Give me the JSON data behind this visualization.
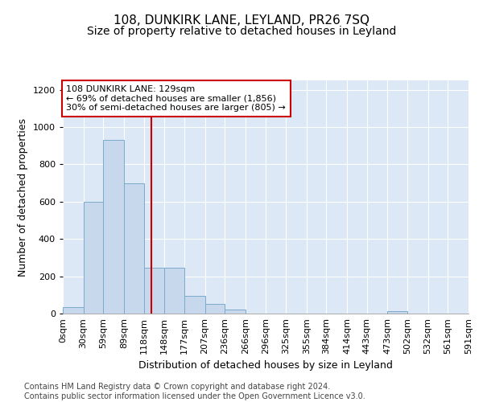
{
  "title1": "108, DUNKIRK LANE, LEYLAND, PR26 7SQ",
  "title2": "Size of property relative to detached houses in Leyland",
  "xlabel": "Distribution of detached houses by size in Leyland",
  "ylabel": "Number of detached properties",
  "bin_edges": [
    0,
    30,
    59,
    89,
    118,
    148,
    177,
    207,
    236,
    266,
    296,
    325,
    355,
    384,
    414,
    443,
    473,
    502,
    532,
    561,
    591
  ],
  "bar_heights": [
    35,
    600,
    930,
    700,
    245,
    245,
    95,
    50,
    20,
    0,
    0,
    0,
    0,
    0,
    0,
    0,
    15,
    0,
    0,
    0
  ],
  "bar_color": "#c8d8ec",
  "bar_edge_color": "#7aaaca",
  "property_line_x": 129,
  "property_line_color": "#cc0000",
  "annotation_text": "108 DUNKIRK LANE: 129sqm\n← 69% of detached houses are smaller (1,856)\n30% of semi-detached houses are larger (805) →",
  "annotation_box_facecolor": "#ffffff",
  "annotation_box_edgecolor": "#cc0000",
  "ylim": [
    0,
    1250
  ],
  "yticks": [
    0,
    200,
    400,
    600,
    800,
    1000,
    1200
  ],
  "xlim": [
    0,
    591
  ],
  "background_color": "#dce8f5",
  "grid_color": "#ffffff",
  "footer_text": "Contains HM Land Registry data © Crown copyright and database right 2024.\nContains public sector information licensed under the Open Government Licence v3.0.",
  "title1_fontsize": 11,
  "title2_fontsize": 10,
  "xlabel_fontsize": 9,
  "ylabel_fontsize": 9,
  "tick_fontsize": 8,
  "annotation_fontsize": 8,
  "footer_fontsize": 7,
  "xtick_labels": [
    "0sqm",
    "30sqm",
    "59sqm",
    "89sqm",
    "118sqm",
    "148sqm",
    "177sqm",
    "207sqm",
    "236sqm",
    "266sqm",
    "296sqm",
    "325sqm",
    "355sqm",
    "384sqm",
    "414sqm",
    "443sqm",
    "473sqm",
    "502sqm",
    "532sqm",
    "561sqm",
    "591sqm"
  ]
}
